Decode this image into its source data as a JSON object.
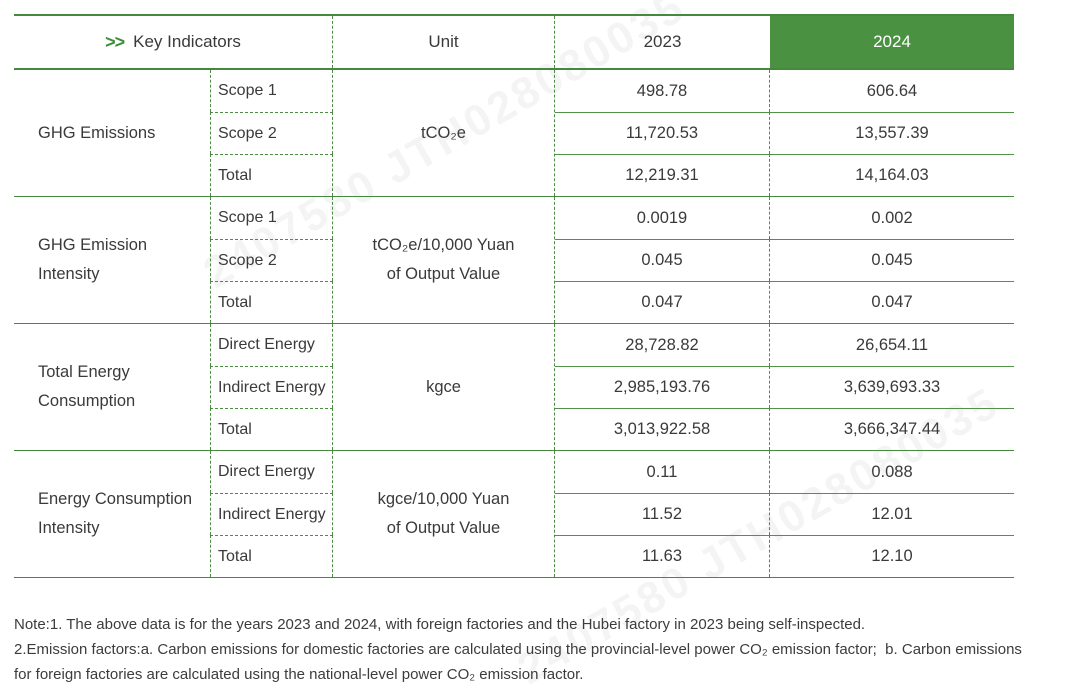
{
  "colors": {
    "header_fill_green": "#4a9142",
    "line_green": "#47883f",
    "dashed_line_green": "#4e8c46",
    "chevron_green": "#3f8d3a",
    "text_dark": "#3a3a3a"
  },
  "watermark": {
    "text": "2407580 JTH028080035"
  },
  "table": {
    "headers": {
      "chevron": ">>",
      "key_indicators": "Key Indicators",
      "unit": "Unit",
      "y2023": "2023",
      "y2024": "2024"
    },
    "groups": [
      {
        "name": "GHG Emissions",
        "unit_line1": "tCO₂e",
        "unit_line2": "",
        "rows": [
          {
            "label": "Scope 1",
            "y2023": "498.78",
            "y2024": "606.64"
          },
          {
            "label": "Scope 2",
            "y2023": "11,720.53",
            "y2024": "13,557.39"
          },
          {
            "label": "Total",
            "y2023": "12,219.31",
            "y2024": "14,164.03"
          }
        ]
      },
      {
        "name": "GHG Emission Intensity",
        "unit_line1": "tCO₂e/10,000 Yuan",
        "unit_line2": "of Output Value",
        "rows": [
          {
            "label": "Scope 1",
            "y2023": "0.0019",
            "y2024": "0.002"
          },
          {
            "label": "Scope 2",
            "y2023": "0.045",
            "y2024": "0.045"
          },
          {
            "label": "Total",
            "y2023": "0.047",
            "y2024": "0.047"
          }
        ]
      },
      {
        "name": "Total Energy Consumption",
        "unit_line1": "kgce",
        "unit_line2": "",
        "rows": [
          {
            "label": "Direct Energy",
            "y2023": "28,728.82",
            "y2024": "26,654.11"
          },
          {
            "label": "Indirect Energy",
            "y2023": "2,985,193.76",
            "y2024": "3,639,693.33"
          },
          {
            "label": "Total",
            "y2023": "3,013,922.58",
            "y2024": "3,666,347.44"
          }
        ]
      },
      {
        "name": "Energy Consumption Intensity",
        "unit_line1": "kgce/10,000 Yuan",
        "unit_line2": "of Output Value",
        "rows": [
          {
            "label": "Direct Energy",
            "y2023": "0.11",
            "y2024": "0.088"
          },
          {
            "label": "Indirect Energy",
            "y2023": "11.52",
            "y2024": "12.01"
          },
          {
            "label": "Total",
            "y2023": "11.63",
            "y2024": "12.10"
          }
        ]
      }
    ]
  },
  "notes": {
    "note1": "Note:1. The above data is for the years 2023 and 2024, with foreign factories and the Hubei factory in 2023 being self-inspected.",
    "note2": "2.Emission factors:a. Carbon emissions for domestic factories are calculated using the provincial-level power CO₂ emission factor;  b. Carbon emissions for foreign factories are calculated using the national-level power CO₂ emission factor."
  }
}
